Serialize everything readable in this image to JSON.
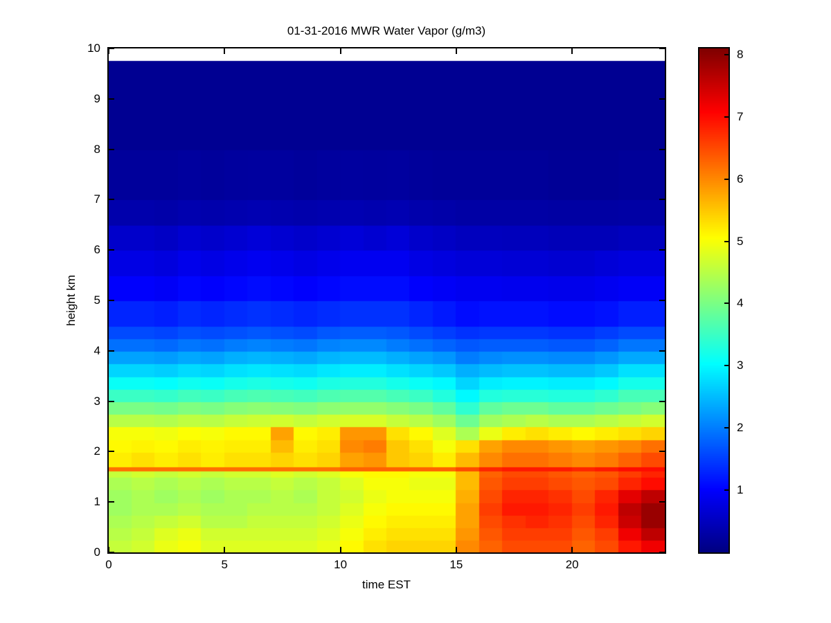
{
  "figure": {
    "background": "#ffffff",
    "axis_color": "#000000"
  },
  "chart_data": {
    "type": "heatmap",
    "title": "01-31-2016 MWR Water Vapor (g/m3)",
    "xlabel": "time EST",
    "ylabel": "height km",
    "xlim": [
      0,
      24
    ],
    "ylim": [
      0,
      10
    ],
    "data_top_km": 9.75,
    "xticks": [
      0,
      5,
      10,
      15,
      20
    ],
    "yticks": [
      0,
      1,
      2,
      3,
      4,
      5,
      6,
      7,
      8,
      9,
      10
    ],
    "grid": false,
    "legend": "none",
    "colormap": "jet",
    "colorbar": {
      "position": "right",
      "vmin": 0,
      "vmax": 8.1,
      "ticks": [
        1,
        2,
        3,
        4,
        5,
        6,
        7,
        8
      ]
    },
    "x_hours": [
      0,
      1,
      2,
      3,
      4,
      5,
      6,
      7,
      8,
      9,
      10,
      11,
      12,
      13,
      14,
      15,
      16,
      17,
      18,
      19,
      20,
      21,
      22,
      23
    ],
    "rows": [
      {
        "z0": 0.0,
        "z1": 0.25,
        "values": [
          4.6,
          4.7,
          4.9,
          5.0,
          4.8,
          4.8,
          4.8,
          4.8,
          4.8,
          4.9,
          5.1,
          5.3,
          5.4,
          5.4,
          5.4,
          6.0,
          6.3,
          6.5,
          6.5,
          6.5,
          6.3,
          6.5,
          6.9,
          7.2
        ]
      },
      {
        "z0": 0.25,
        "z1": 0.5,
        "values": [
          4.5,
          4.6,
          4.8,
          4.9,
          4.7,
          4.7,
          4.7,
          4.7,
          4.7,
          4.8,
          5.0,
          5.2,
          5.3,
          5.3,
          5.3,
          5.9,
          6.4,
          6.6,
          6.6,
          6.6,
          6.4,
          6.6,
          7.2,
          7.6
        ]
      },
      {
        "z0": 0.5,
        "z1": 0.75,
        "values": [
          4.4,
          4.5,
          4.6,
          4.7,
          4.5,
          4.5,
          4.6,
          4.6,
          4.6,
          4.7,
          4.9,
          5.1,
          5.2,
          5.2,
          5.2,
          5.8,
          6.5,
          6.7,
          6.8,
          6.7,
          6.5,
          6.8,
          7.5,
          7.9
        ]
      },
      {
        "z0": 0.75,
        "z1": 1.0,
        "values": [
          4.3,
          4.4,
          4.4,
          4.5,
          4.4,
          4.4,
          4.5,
          4.5,
          4.5,
          4.6,
          4.8,
          5.0,
          5.1,
          5.1,
          5.1,
          5.8,
          6.6,
          6.9,
          6.9,
          6.8,
          6.6,
          6.9,
          7.6,
          7.9
        ]
      },
      {
        "z0": 1.0,
        "z1": 1.25,
        "values": [
          4.3,
          4.4,
          4.3,
          4.4,
          4.3,
          4.4,
          4.4,
          4.5,
          4.4,
          4.6,
          4.7,
          4.9,
          5.0,
          5.0,
          5.0,
          5.7,
          6.5,
          6.8,
          6.8,
          6.7,
          6.5,
          6.8,
          7.3,
          7.6
        ]
      },
      {
        "z0": 1.25,
        "z1": 1.5,
        "values": [
          4.4,
          4.5,
          4.4,
          4.5,
          4.4,
          4.5,
          4.5,
          4.6,
          4.5,
          4.6,
          4.8,
          5.0,
          5.0,
          4.9,
          4.9,
          5.6,
          6.4,
          6.6,
          6.6,
          6.5,
          6.4,
          6.5,
          6.8,
          7.0
        ]
      },
      {
        "z0": 1.5,
        "z1": 1.625,
        "values": [
          4.6,
          4.7,
          4.6,
          4.7,
          4.6,
          4.7,
          4.7,
          4.8,
          4.7,
          4.8,
          5.0,
          5.1,
          5.1,
          5.0,
          5.0,
          5.6,
          6.3,
          6.5,
          6.5,
          6.4,
          6.3,
          6.4,
          6.6,
          6.8
        ]
      },
      {
        "z0": 1.625,
        "z1": 1.7,
        "values": [
          6.2,
          6.2,
          6.2,
          6.2,
          6.2,
          6.2,
          6.2,
          6.2,
          6.2,
          6.2,
          6.3,
          6.3,
          6.3,
          6.3,
          6.3,
          6.5,
          6.8,
          6.9,
          6.9,
          6.9,
          6.8,
          6.9,
          7.0,
          7.0
        ]
      },
      {
        "z0": 1.7,
        "z1": 2.0,
        "values": [
          5.2,
          5.3,
          5.2,
          5.3,
          5.2,
          5.3,
          5.3,
          5.4,
          5.3,
          5.4,
          5.8,
          5.9,
          5.5,
          5.4,
          5.2,
          5.6,
          6.0,
          6.2,
          6.2,
          6.1,
          6.0,
          6.1,
          6.3,
          6.5
        ]
      },
      {
        "z0": 2.0,
        "z1": 2.25,
        "values": [
          5.1,
          5.15,
          5.1,
          5.2,
          5.15,
          5.2,
          5.2,
          5.6,
          5.2,
          5.3,
          6.0,
          6.1,
          5.5,
          5.3,
          5.0,
          5.3,
          5.8,
          6.0,
          6.0,
          5.9,
          5.8,
          5.9,
          6.0,
          6.2
        ]
      },
      {
        "z0": 2.25,
        "z1": 2.5,
        "values": [
          5.0,
          5.0,
          4.95,
          5.05,
          5.0,
          5.1,
          5.1,
          5.8,
          5.1,
          5.2,
          5.9,
          5.9,
          5.3,
          5.1,
          4.8,
          4.4,
          4.9,
          5.2,
          5.3,
          5.2,
          5.1,
          5.2,
          5.3,
          5.4
        ]
      },
      {
        "z0": 2.5,
        "z1": 2.75,
        "values": [
          4.5,
          4.5,
          4.45,
          4.55,
          4.5,
          4.6,
          4.65,
          4.7,
          4.6,
          4.7,
          4.75,
          4.75,
          4.6,
          4.5,
          4.3,
          3.9,
          4.3,
          4.4,
          4.5,
          4.4,
          4.4,
          4.5,
          4.6,
          4.7
        ]
      },
      {
        "z0": 2.75,
        "z1": 3.0,
        "values": [
          4.0,
          4.0,
          3.95,
          4.05,
          4.0,
          4.1,
          4.15,
          4.1,
          4.05,
          4.15,
          4.2,
          4.2,
          4.1,
          4.0,
          3.8,
          3.4,
          3.8,
          3.9,
          3.9,
          3.8,
          3.8,
          3.9,
          4.0,
          4.1
        ]
      },
      {
        "z0": 3.0,
        "z1": 3.25,
        "values": [
          3.5,
          3.5,
          3.45,
          3.55,
          3.5,
          3.6,
          3.65,
          3.6,
          3.55,
          3.65,
          3.7,
          3.7,
          3.6,
          3.5,
          3.3,
          3.0,
          3.3,
          3.35,
          3.35,
          3.3,
          3.3,
          3.4,
          3.6,
          3.6
        ]
      },
      {
        "z0": 3.25,
        "z1": 3.5,
        "values": [
          3.1,
          3.1,
          3.05,
          3.15,
          3.1,
          3.2,
          3.25,
          3.2,
          3.15,
          3.25,
          3.3,
          3.3,
          3.2,
          3.1,
          3.0,
          2.7,
          2.9,
          2.95,
          2.95,
          2.9,
          2.9,
          3.0,
          3.2,
          3.2
        ]
      },
      {
        "z0": 3.5,
        "z1": 3.75,
        "values": [
          2.7,
          2.7,
          2.65,
          2.75,
          2.7,
          2.8,
          2.85,
          2.8,
          2.75,
          2.85,
          2.9,
          2.9,
          2.8,
          2.7,
          2.6,
          2.4,
          2.5,
          2.55,
          2.55,
          2.5,
          2.5,
          2.6,
          2.8,
          2.8
        ]
      },
      {
        "z0": 3.75,
        "z1": 4.0,
        "values": [
          2.3,
          2.3,
          2.25,
          2.35,
          2.3,
          2.4,
          2.45,
          2.4,
          2.35,
          2.45,
          2.5,
          2.5,
          2.4,
          2.3,
          2.2,
          2.0,
          2.1,
          2.15,
          2.15,
          2.1,
          2.1,
          2.2,
          2.35,
          2.35
        ]
      },
      {
        "z0": 4.0,
        "z1": 4.25,
        "values": [
          1.9,
          1.9,
          1.85,
          1.95,
          1.9,
          2.0,
          2.05,
          2.0,
          1.95,
          2.05,
          2.1,
          2.1,
          2.0,
          1.9,
          1.8,
          1.7,
          1.75,
          1.75,
          1.75,
          1.7,
          1.7,
          1.8,
          1.95,
          1.95
        ]
      },
      {
        "z0": 4.25,
        "z1": 4.5,
        "values": [
          1.6,
          1.6,
          1.55,
          1.65,
          1.6,
          1.65,
          1.7,
          1.65,
          1.6,
          1.7,
          1.75,
          1.75,
          1.7,
          1.6,
          1.5,
          1.4,
          1.45,
          1.45,
          1.45,
          1.4,
          1.4,
          1.5,
          1.6,
          1.6
        ]
      },
      {
        "z0": 4.5,
        "z1": 5.0,
        "values": [
          1.3,
          1.3,
          1.25,
          1.35,
          1.3,
          1.35,
          1.4,
          1.35,
          1.3,
          1.35,
          1.4,
          1.4,
          1.4,
          1.3,
          1.2,
          1.1,
          1.15,
          1.15,
          1.15,
          1.1,
          1.1,
          1.15,
          1.25,
          1.25
        ]
      },
      {
        "z0": 5.0,
        "z1": 5.5,
        "values": [
          1.0,
          1.0,
          0.95,
          1.05,
          1.0,
          1.05,
          1.1,
          1.05,
          1.0,
          1.05,
          1.1,
          1.1,
          1.1,
          1.0,
          0.95,
          0.9,
          0.9,
          0.88,
          0.88,
          0.85,
          0.85,
          0.9,
          0.95,
          0.95
        ]
      },
      {
        "z0": 5.5,
        "z1": 6.0,
        "values": [
          0.8,
          0.8,
          0.75,
          0.85,
          0.8,
          0.85,
          0.9,
          0.85,
          0.8,
          0.85,
          0.9,
          0.9,
          0.9,
          0.8,
          0.75,
          0.7,
          0.7,
          0.68,
          0.68,
          0.65,
          0.65,
          0.7,
          0.75,
          0.75
        ]
      },
      {
        "z0": 6.0,
        "z1": 6.5,
        "values": [
          0.6,
          0.6,
          0.55,
          0.65,
          0.6,
          0.65,
          0.7,
          0.65,
          0.6,
          0.65,
          0.7,
          0.65,
          0.7,
          0.6,
          0.55,
          0.5,
          0.5,
          0.48,
          0.48,
          0.45,
          0.45,
          0.45,
          0.5,
          0.5
        ]
      },
      {
        "z0": 6.5,
        "z1": 7.0,
        "values": [
          0.35,
          0.35,
          0.33,
          0.38,
          0.35,
          0.38,
          0.4,
          0.38,
          0.35,
          0.38,
          0.4,
          0.38,
          0.4,
          0.35,
          0.33,
          0.3,
          0.3,
          0.3,
          0.3,
          0.28,
          0.28,
          0.28,
          0.3,
          0.3
        ]
      },
      {
        "z0": 7.0,
        "z1": 8.0,
        "values": [
          0.22,
          0.22,
          0.22,
          0.24,
          0.22,
          0.24,
          0.25,
          0.24,
          0.22,
          0.24,
          0.25,
          0.24,
          0.25,
          0.22,
          0.2,
          0.2,
          0.2,
          0.2,
          0.2,
          0.18,
          0.18,
          0.18,
          0.2,
          0.2
        ]
      },
      {
        "z0": 8.0,
        "z1": 9.75,
        "values": [
          0.15,
          0.15,
          0.15,
          0.15,
          0.15,
          0.15,
          0.15,
          0.15,
          0.15,
          0.15,
          0.15,
          0.15,
          0.15,
          0.15,
          0.15,
          0.15,
          0.15,
          0.15,
          0.15,
          0.15,
          0.15,
          0.15,
          0.15,
          0.15
        ]
      }
    ]
  }
}
